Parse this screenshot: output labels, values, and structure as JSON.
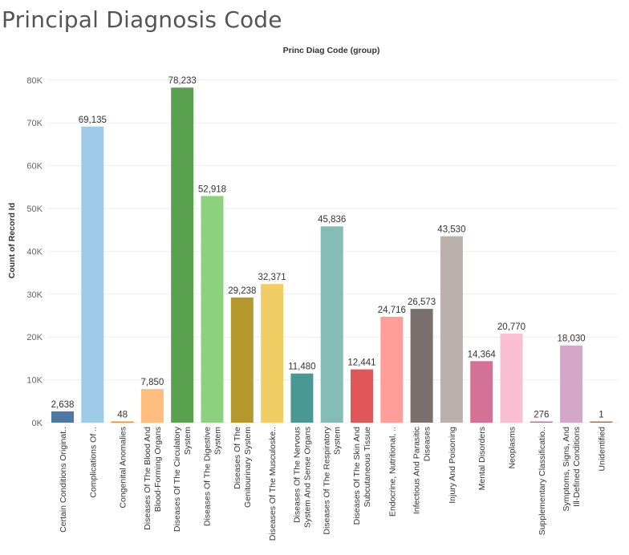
{
  "page": {
    "title": "Principal Diagnosis Code"
  },
  "chart_data": {
    "type": "bar",
    "title": "Principal Diagnosis Code",
    "header": "Princ Diag Code (group)",
    "xlabel": "",
    "ylabel": "Count of Record Id",
    "ylim": [
      0,
      84000
    ],
    "yticks": [
      0,
      10000,
      20000,
      30000,
      40000,
      50000,
      60000,
      70000,
      80000
    ],
    "ytick_labels": [
      "0K",
      "10K",
      "20K",
      "30K",
      "40K",
      "50K",
      "60K",
      "70K",
      "80K"
    ],
    "grid": true,
    "categories": [
      [
        "Certain Conditions Originat.."
      ],
      [
        "Complications Of .."
      ],
      [
        "Congenital Anomalies"
      ],
      [
        "Diseases Of The Blood And",
        "Blood-Forming Organs"
      ],
      [
        "Diseases Of The Circulatory",
        "System"
      ],
      [
        "Diseases Of The Digestive",
        "System"
      ],
      [
        "Diseases Of The",
        "Genitourinary System"
      ],
      [
        "Diseases Of The Musculoske.."
      ],
      [
        "Diseases Of The Nervous",
        "System And Sense Organs"
      ],
      [
        "Diseases Of The Respiratory",
        "System"
      ],
      [
        "Diseases Of The Skin And",
        "Subcutaneous Tissue"
      ],
      [
        "Endocrine, Nutritional, .."
      ],
      [
        "Infectious And Parasitic",
        "Diseases"
      ],
      [
        "Injury And Poisoning"
      ],
      [
        "Mental Disorders"
      ],
      [
        "Neoplasms"
      ],
      [
        "Supplementary Classificatio.."
      ],
      [
        "Symptoms, Signs, And",
        "Ill-Defined Conditions"
      ],
      [
        "Unidentified"
      ]
    ],
    "values": [
      2638,
      69135,
      48,
      7850,
      78233,
      52918,
      29238,
      32371,
      11480,
      45836,
      12441,
      24716,
      26573,
      43530,
      14364,
      20770,
      276,
      18030,
      1
    ],
    "value_labels": [
      "2,638",
      "69,135",
      "48",
      "7,850",
      "78,233",
      "52,918",
      "29,238",
      "32,371",
      "11,480",
      "45,836",
      "12,441",
      "24,716",
      "26,573",
      "43,530",
      "14,364",
      "20,770",
      "276",
      "18,030",
      "1"
    ],
    "colors": [
      "#4e79a7",
      "#a0cbe8",
      "#f28e2b",
      "#ffbe7d",
      "#59a14f",
      "#8cd17d",
      "#b6992d",
      "#f1ce63",
      "#499894",
      "#86bcb6",
      "#e15759",
      "#ff9d9a",
      "#79706e",
      "#bab0ac",
      "#d37295",
      "#fabfd2",
      "#b07aa1",
      "#d4a6c8",
      "#9d7660"
    ]
  }
}
